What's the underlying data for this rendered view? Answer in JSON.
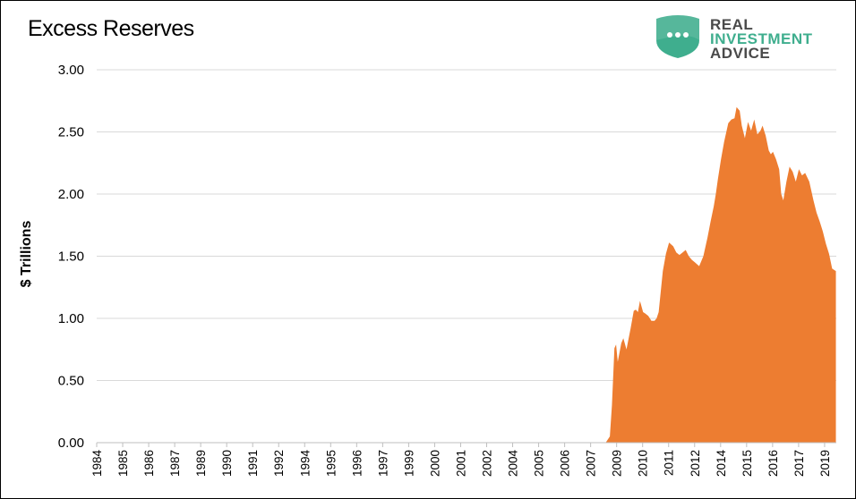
{
  "logo": {
    "line1": "REAL",
    "line2": "INVESTMENT",
    "line3": "ADVICE",
    "shield_color": "#3fae8e",
    "text_dark": "#4a4a4a",
    "text_accent": "#3fae8e"
  },
  "chart_data": {
    "type": "area",
    "title": "Excess Reserves",
    "ylabel": "$ Trillions",
    "xlabel": "",
    "ylim": [
      0,
      3.0
    ],
    "xlim": [
      1984.0,
      2019.6
    ],
    "y_ticks": [
      "0.00",
      "0.50",
      "1.00",
      "1.50",
      "2.00",
      "2.50",
      "3.00"
    ],
    "x_tick_labels": [
      "1984",
      "1985",
      "1986",
      "1987",
      "1989",
      "1990",
      "1991",
      "1992",
      "1994",
      "1995",
      "1996",
      "1997",
      "1999",
      "2000",
      "2001",
      "2002",
      "2004",
      "2005",
      "2006",
      "2007",
      "2009",
      "2010",
      "2011",
      "2012",
      "2014",
      "2015",
      "2016",
      "2017",
      "2019"
    ],
    "grid": true,
    "fill_color": "#ed7d31",
    "series": [
      {
        "x": [
          1984.0,
          2008.5,
          2008.7,
          2008.8,
          2008.92,
          2009.0,
          2009.08,
          2009.25,
          2009.35,
          2009.5,
          2009.7,
          2009.85,
          2009.95,
          2010.05,
          2010.15,
          2010.3,
          2010.4,
          2010.55,
          2010.7,
          2010.85,
          2010.95,
          2011.05,
          2011.25,
          2011.4,
          2011.55,
          2011.75,
          2011.9,
          2012.05,
          2012.2,
          2012.35,
          2012.5,
          2012.65,
          2012.8,
          2013.0,
          2013.2,
          2013.4,
          2013.55,
          2013.7,
          2013.8,
          2013.9,
          2014.05,
          2014.2,
          2014.4,
          2014.55,
          2014.7,
          2014.8,
          2014.95,
          2015.05,
          2015.2,
          2015.35,
          2015.5,
          2015.65,
          2015.8,
          2015.95,
          2016.05,
          2016.2,
          2016.35,
          2016.45,
          2016.55,
          2016.7,
          2016.85,
          2016.95,
          2017.05,
          2017.2,
          2017.35,
          2017.5,
          2017.65,
          2017.8,
          2017.95,
          2018.1,
          2018.3,
          2018.5,
          2018.65,
          2018.8,
          2018.95,
          2019.1,
          2019.25,
          2019.4,
          2019.58
        ],
        "values": [
          0,
          0,
          0.05,
          0.3,
          0.76,
          0.79,
          0.65,
          0.8,
          0.84,
          0.75,
          0.92,
          1.06,
          1.07,
          1.05,
          1.14,
          1.05,
          1.04,
          1.02,
          0.98,
          0.98,
          1.0,
          1.05,
          1.38,
          1.52,
          1.61,
          1.58,
          1.53,
          1.51,
          1.53,
          1.55,
          1.5,
          1.47,
          1.45,
          1.42,
          1.5,
          1.65,
          1.78,
          1.9,
          2.0,
          2.12,
          2.28,
          2.42,
          2.57,
          2.6,
          2.61,
          2.7,
          2.67,
          2.55,
          2.45,
          2.58,
          2.51,
          2.6,
          2.48,
          2.51,
          2.55,
          2.47,
          2.35,
          2.32,
          2.34,
          2.28,
          2.2,
          2.0,
          1.95,
          2.1,
          2.22,
          2.18,
          2.1,
          2.2,
          2.15,
          2.17,
          2.1,
          1.95,
          1.85,
          1.78,
          1.7,
          1.6,
          1.52,
          1.4,
          1.38
        ]
      }
    ]
  }
}
